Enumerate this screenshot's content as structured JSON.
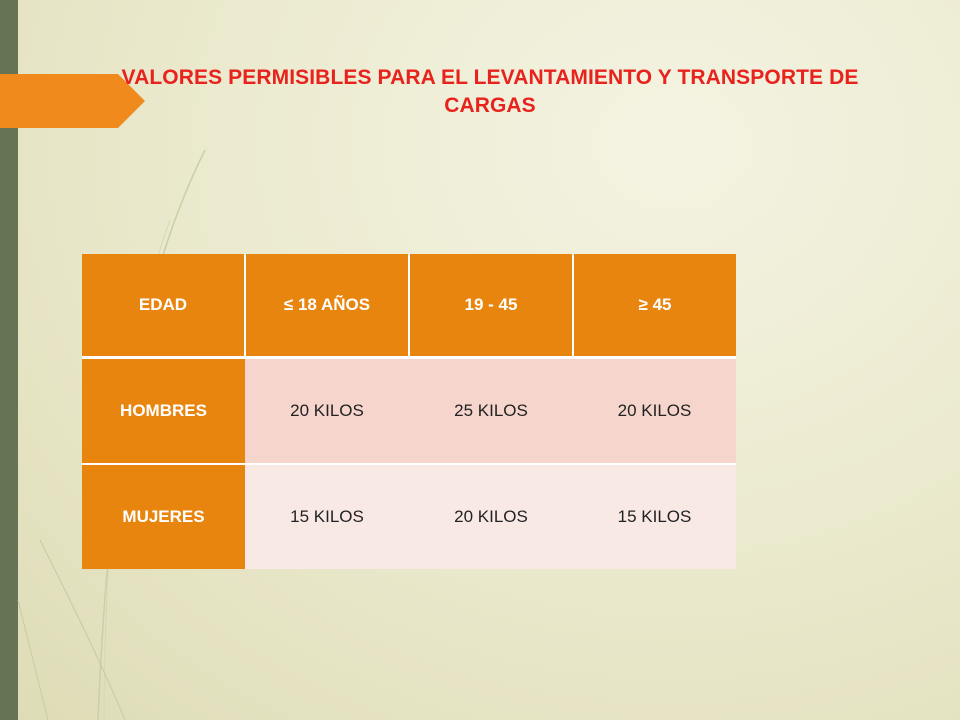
{
  "title": "VALORES PERMISIBLES PARA EL LEVANTAMIENTO Y TRANSPORTE DE CARGAS",
  "table": {
    "headers": [
      "EDAD",
      "≤ 18 AÑOS",
      "19 - 45",
      "≥ 45"
    ],
    "rows": [
      {
        "label": "HOMBRES",
        "values": [
          "20 KILOS",
          "25 KILOS",
          "20 KILOS"
        ]
      },
      {
        "label": "MUJERES",
        "values": [
          "15 KILOS",
          "20 KILOS",
          "15 KILOS"
        ]
      }
    ]
  },
  "colors": {
    "title": "#e8221c",
    "header_fill": "#e8850f",
    "row1_fill": "#f5d5cc",
    "row2_fill": "#f9e9e5",
    "left_bar": "#667355"
  }
}
